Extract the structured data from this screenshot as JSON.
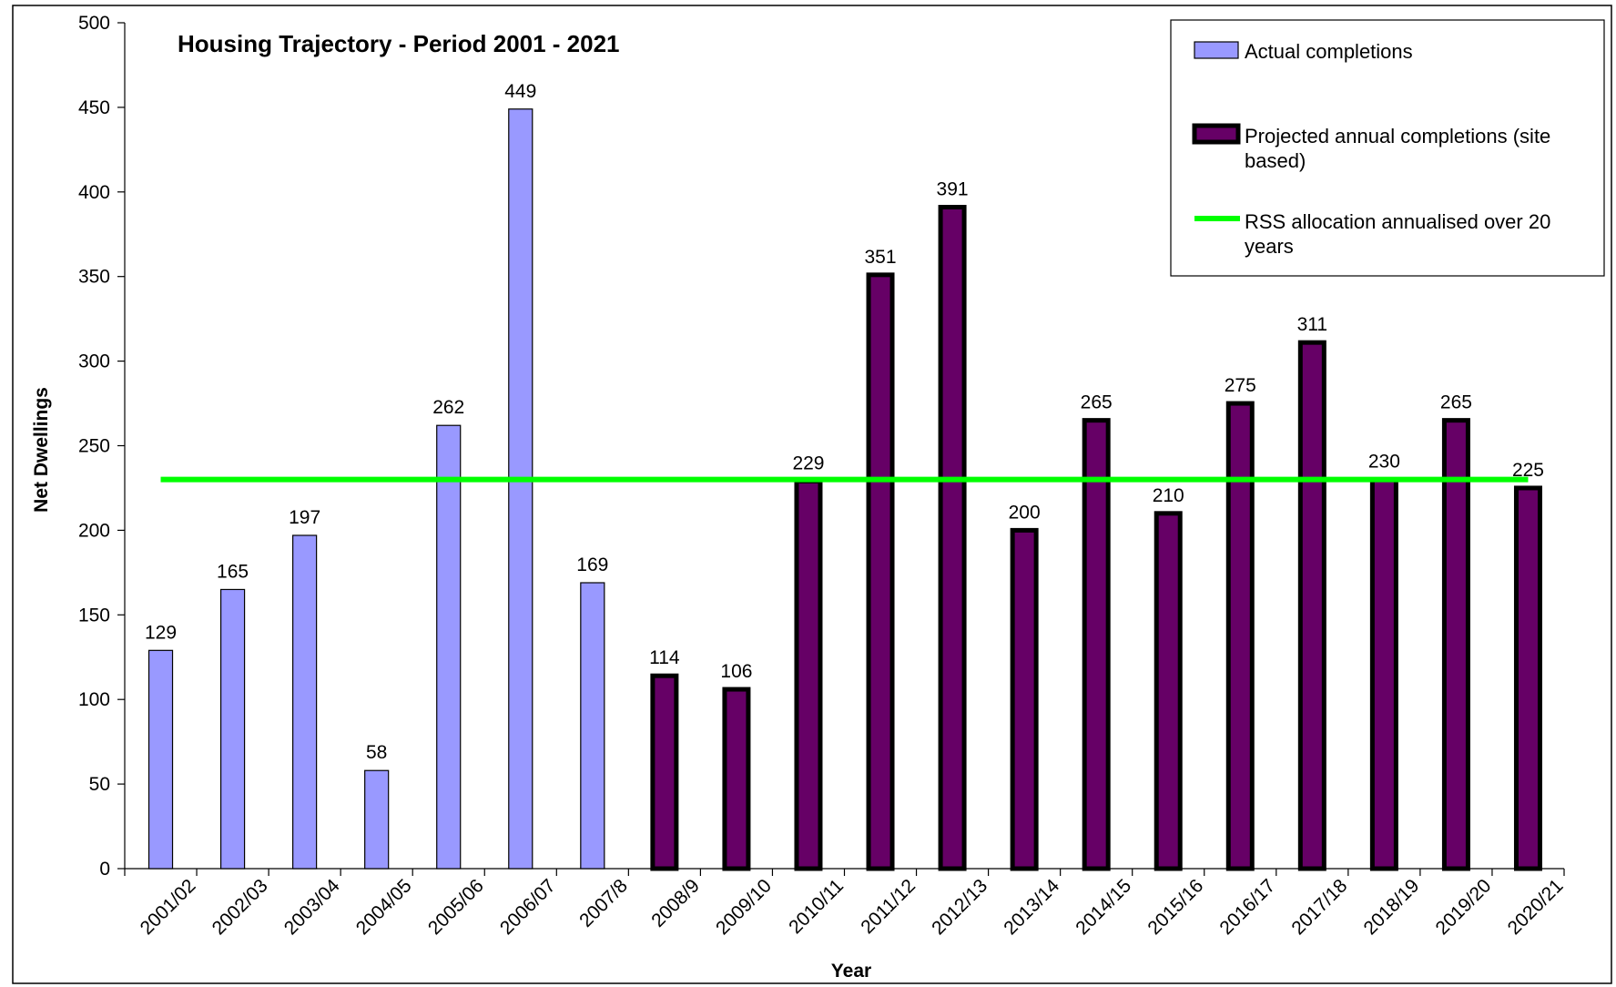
{
  "chart_data": {
    "type": "bar",
    "title": "Housing Trajectory - Period 2001 - 2021",
    "xlabel": "Year",
    "ylabel": "Net Dwellings",
    "ylim": [
      0,
      500
    ],
    "yticks": [
      0,
      50,
      100,
      150,
      200,
      250,
      300,
      350,
      400,
      450,
      500
    ],
    "categories": [
      "2001/02",
      "2002/03",
      "2003/04",
      "2004/05",
      "2005/06",
      "2006/07",
      "2007/8",
      "2008/9",
      "2009/10",
      "2010/11",
      "2011/12",
      "2012/13",
      "2013/14",
      "2014/15",
      "2015/16",
      "2016/17",
      "2017/18",
      "2018/19",
      "2019/20",
      "2020/21"
    ],
    "series": [
      {
        "name": "Actual completions",
        "color": "#9999ff",
        "values": [
          129,
          165,
          197,
          58,
          262,
          449,
          169,
          null,
          null,
          null,
          null,
          null,
          null,
          null,
          null,
          null,
          null,
          null,
          null,
          null
        ]
      },
      {
        "name": "Projected annual completions (site based)",
        "color": "#660066",
        "values": [
          null,
          null,
          null,
          null,
          null,
          null,
          null,
          114,
          106,
          229,
          351,
          391,
          200,
          265,
          210,
          275,
          311,
          230,
          265,
          225
        ]
      }
    ],
    "reference_line": {
      "name": "RSS allocation annualised over 20 years",
      "color": "#00ff00",
      "value": 230
    },
    "legend_position": "top-right",
    "grid": false
  }
}
